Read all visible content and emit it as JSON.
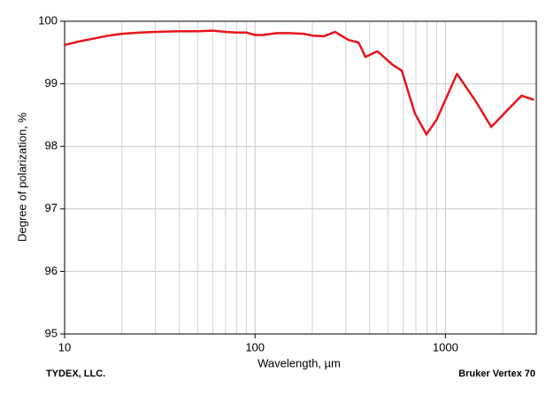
{
  "chart_data": {
    "type": "line",
    "log_x": true,
    "grid": true,
    "xlabel": "Wavelength, µm",
    "ylabel": "Degree of polarization, %",
    "footer_left": "TYDEX, LLC.",
    "footer_right": "Bruker Vertex 70",
    "xlim": [
      10,
      3000
    ],
    "ylim": [
      95,
      100
    ],
    "xticks": [
      10,
      100,
      1000
    ],
    "xminorticks": [
      20,
      30,
      40,
      50,
      60,
      70,
      80,
      90,
      200,
      300,
      400,
      500,
      600,
      700,
      800,
      900,
      2000,
      3000
    ],
    "yticks": [
      95,
      96,
      97,
      98,
      99,
      100
    ],
    "x": [
      10,
      12,
      14,
      17,
      20,
      25,
      30,
      40,
      50,
      60,
      70,
      80,
      90,
      100,
      110,
      130,
      150,
      180,
      200,
      230,
      263,
      310,
      350,
      380,
      440,
      525,
      590,
      690,
      795,
      900,
      1150,
      1450,
      1740,
      2100,
      2510,
      2890
    ],
    "series": [
      {
        "name": "Degree of polarization",
        "color": "#e8141c",
        "values": [
          99.62,
          99.68,
          99.72,
          99.77,
          99.8,
          99.82,
          99.83,
          99.84,
          99.84,
          99.85,
          99.83,
          99.82,
          99.82,
          99.78,
          99.78,
          99.81,
          99.81,
          99.8,
          99.77,
          99.76,
          99.83,
          99.7,
          99.66,
          99.43,
          99.52,
          99.31,
          99.21,
          98.53,
          98.19,
          98.43,
          99.16,
          98.71,
          98.31,
          98.57,
          98.81,
          98.75
        ]
      }
    ]
  }
}
